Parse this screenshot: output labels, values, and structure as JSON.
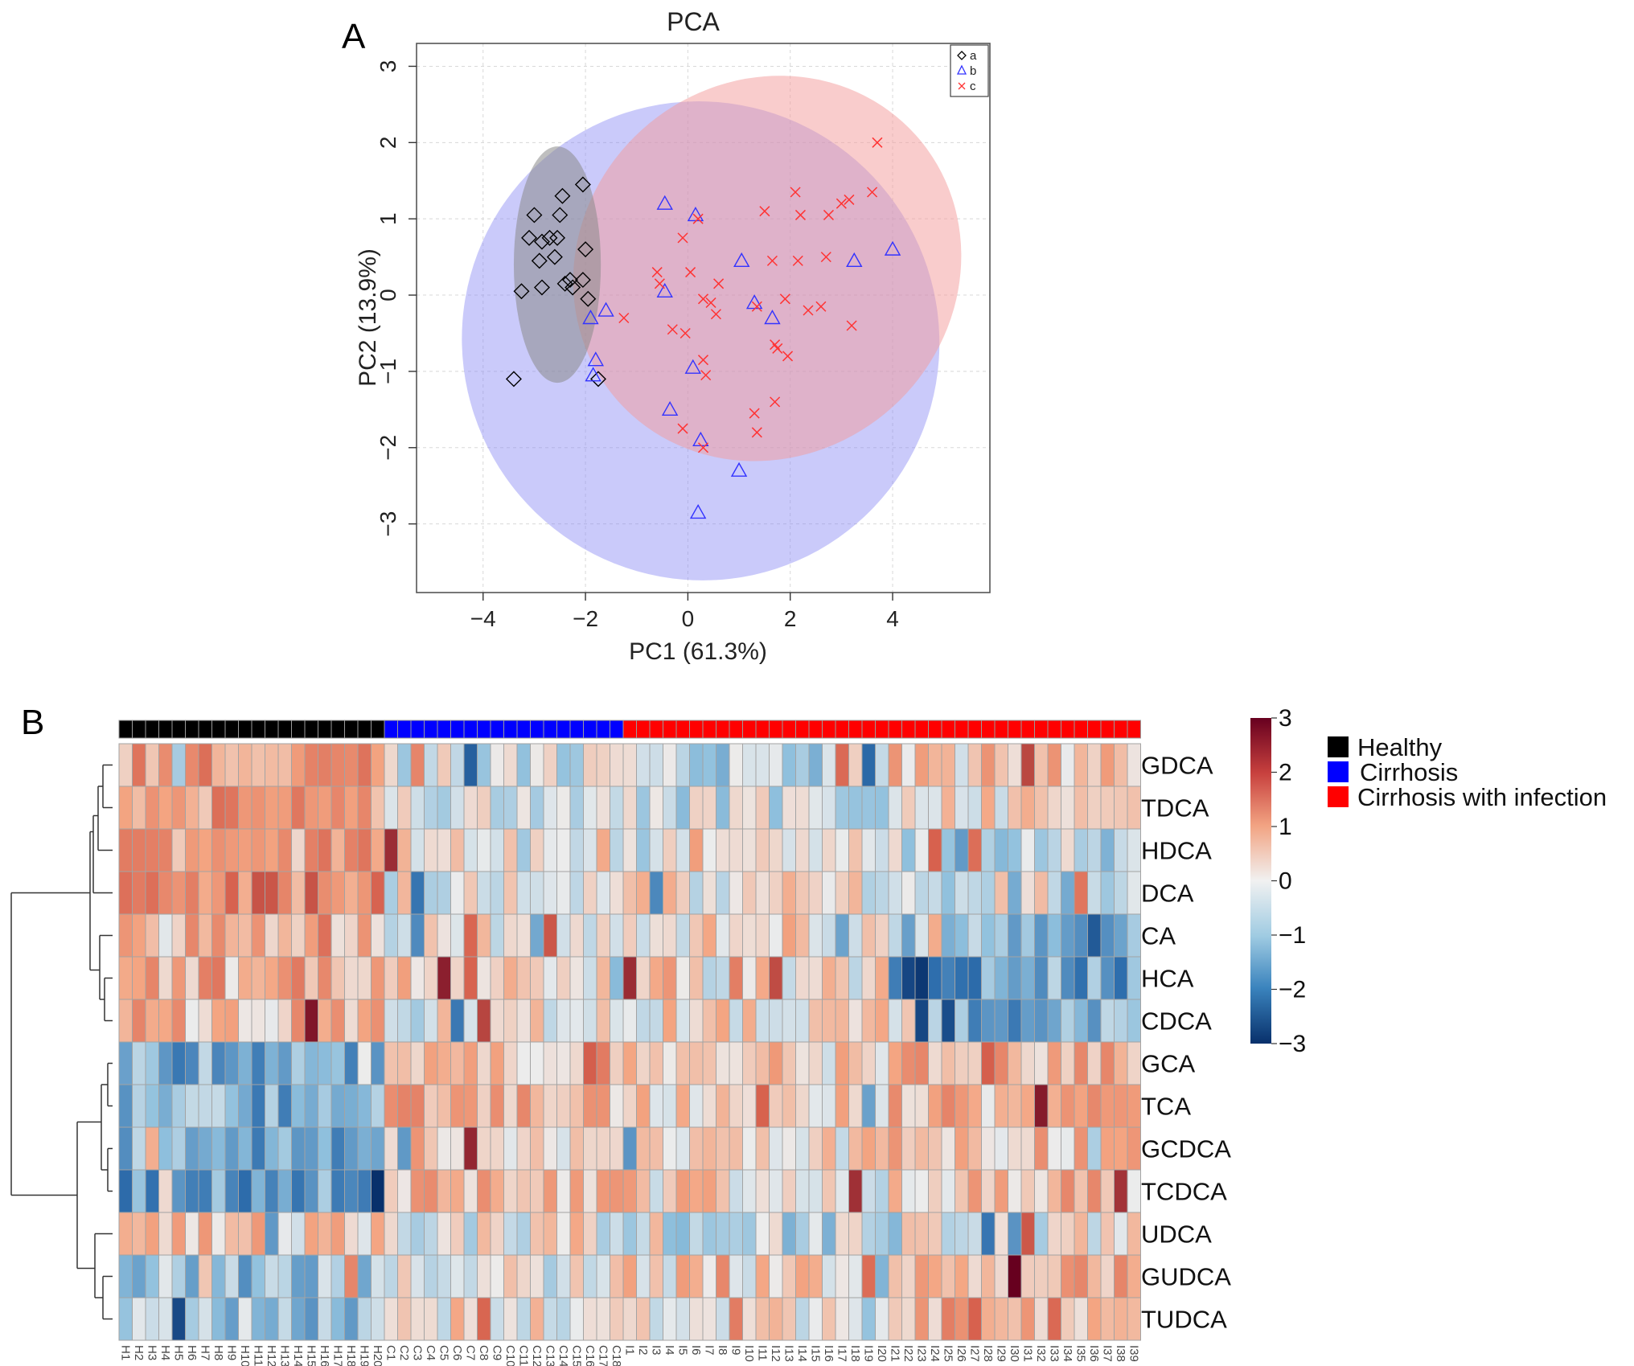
{
  "panel_labels": {
    "a": "A",
    "b": "B"
  },
  "colors": {
    "group_a": "#000000",
    "group_b": "#3333ff",
    "group_c": "#ff3333",
    "healthy": "#000000",
    "cirrhosis": "#0000ff",
    "infection": "#ff0000",
    "scale_low": "#08306b",
    "scale_mid": "#f7f7f7",
    "scale_high": "#67001f"
  },
  "chart_data": [
    {
      "type": "scatter",
      "title": "PCA",
      "xlabel": "PC1 (61.3%)",
      "ylabel": "PC2 (13.9%)",
      "xlim": [
        -5.3,
        5.9
      ],
      "ylim": [
        -3.9,
        3.3
      ],
      "xticks": [
        -4,
        -2,
        0,
        2,
        4
      ],
      "xtick_labels": [
        "−4",
        "−2",
        "0",
        "2",
        "4"
      ],
      "yticks": [
        -3,
        -2,
        -1,
        0,
        1,
        2,
        3
      ],
      "ytick_labels": [
        "−3",
        "−2",
        "−1",
        "0",
        "1",
        "2",
        "3"
      ],
      "grid": true,
      "legend": {
        "position": "top-right",
        "entries": [
          "a",
          "b",
          "c"
        ]
      },
      "ellipses": [
        {
          "group": "b",
          "cx": 0.25,
          "cy": -0.6,
          "rx": 4.65,
          "ry": 3.15,
          "angle": 35,
          "color": "#8a8af5",
          "opacity": 0.45
        },
        {
          "group": "c",
          "cx": 1.55,
          "cy": 0.35,
          "rx": 3.9,
          "ry": 2.45,
          "angle": 42,
          "color": "#f39a9a",
          "opacity": 0.5
        },
        {
          "group": "a",
          "cx": -2.55,
          "cy": 0.4,
          "rx": 0.85,
          "ry": 1.55,
          "angle": 0,
          "color": "#8a8a8a",
          "opacity": 0.55
        }
      ],
      "series": [
        {
          "name": "a",
          "marker": "diamond",
          "points": [
            [
              -3.0,
              1.05
            ],
            [
              -3.1,
              0.75
            ],
            [
              -2.85,
              0.7
            ],
            [
              -2.7,
              0.75
            ],
            [
              -2.55,
              0.75
            ],
            [
              -2.5,
              1.05
            ],
            [
              -2.45,
              1.3
            ],
            [
              -2.05,
              1.45
            ],
            [
              -2.0,
              0.6
            ],
            [
              -2.9,
              0.45
            ],
            [
              -2.6,
              0.5
            ],
            [
              -2.3,
              0.2
            ],
            [
              -2.25,
              0.1
            ],
            [
              -2.05,
              0.2
            ],
            [
              -3.25,
              0.05
            ],
            [
              -2.85,
              0.1
            ],
            [
              -1.95,
              -0.05
            ],
            [
              -3.4,
              -1.1
            ],
            [
              -1.75,
              -1.1
            ],
            [
              -2.4,
              0.15
            ]
          ]
        },
        {
          "name": "b",
          "marker": "triangle",
          "points": [
            [
              -0.45,
              1.2
            ],
            [
              0.15,
              1.05
            ],
            [
              -0.45,
              0.05
            ],
            [
              1.05,
              0.45
            ],
            [
              -1.9,
              -0.3
            ],
            [
              -1.6,
              -0.2
            ],
            [
              -1.8,
              -0.85
            ],
            [
              -1.85,
              -1.05
            ],
            [
              1.3,
              -0.1
            ],
            [
              1.65,
              -0.3
            ],
            [
              3.25,
              0.45
            ],
            [
              4.0,
              0.6
            ],
            [
              0.1,
              -0.95
            ],
            [
              -0.35,
              -1.5
            ],
            [
              0.25,
              -1.9
            ],
            [
              1.0,
              -2.3
            ],
            [
              0.2,
              -2.85
            ]
          ]
        },
        {
          "name": "c",
          "marker": "x",
          "points": [
            [
              3.7,
              2.0
            ],
            [
              3.6,
              1.35
            ],
            [
              3.15,
              1.25
            ],
            [
              3.0,
              1.2
            ],
            [
              2.1,
              1.35
            ],
            [
              1.5,
              1.1
            ],
            [
              2.2,
              1.05
            ],
            [
              2.75,
              1.05
            ],
            [
              0.2,
              1.0
            ],
            [
              -0.1,
              0.75
            ],
            [
              0.05,
              0.3
            ],
            [
              -0.6,
              0.3
            ],
            [
              -0.55,
              0.15
            ],
            [
              0.6,
              0.15
            ],
            [
              1.65,
              0.45
            ],
            [
              2.15,
              0.45
            ],
            [
              2.7,
              0.5
            ],
            [
              3.2,
              -0.4
            ],
            [
              2.6,
              -0.15
            ],
            [
              2.35,
              -0.2
            ],
            [
              1.9,
              -0.05
            ],
            [
              1.35,
              -0.15
            ],
            [
              0.45,
              -0.1
            ],
            [
              0.55,
              -0.25
            ],
            [
              0.3,
              -0.05
            ],
            [
              -0.3,
              -0.45
            ],
            [
              -1.25,
              -0.3
            ],
            [
              1.7,
              -0.65
            ],
            [
              1.75,
              -0.7
            ],
            [
              1.95,
              -0.8
            ],
            [
              0.3,
              -0.85
            ],
            [
              0.35,
              -1.05
            ],
            [
              1.7,
              -1.4
            ],
            [
              1.3,
              -1.55
            ],
            [
              1.35,
              -1.8
            ],
            [
              -0.1,
              -1.75
            ],
            [
              0.3,
              -2.0
            ],
            [
              -0.05,
              -0.5
            ]
          ]
        }
      ]
    },
    {
      "type": "heatmap",
      "columns": [
        "H1",
        "H2",
        "H3",
        "H4",
        "H5",
        "H6",
        "H7",
        "H8",
        "H9",
        "H10",
        "H11",
        "H12",
        "H13",
        "H14",
        "H15",
        "H16",
        "H17",
        "H18",
        "H19",
        "H20",
        "C1",
        "C2",
        "C3",
        "C4",
        "C5",
        "C6",
        "C7",
        "C8",
        "C9",
        "C10",
        "C11",
        "C12",
        "C13",
        "C14",
        "C15",
        "C16",
        "C17",
        "C18",
        "I1",
        "I2",
        "I3",
        "I4",
        "I5",
        "I6",
        "I7",
        "I8",
        "I9",
        "I10",
        "I11",
        "I12",
        "I13",
        "I14",
        "I15",
        "I16",
        "I17",
        "I18",
        "I19",
        "I20",
        "I21",
        "I22",
        "I23",
        "I24",
        "I25",
        "I26",
        "I27",
        "I28",
        "I29",
        "I30",
        "I31",
        "I32",
        "I33",
        "I34",
        "I35",
        "I36",
        "I37",
        "I38",
        "I39"
      ],
      "column_groups": {
        "Healthy": 20,
        "Cirrhosis": 18,
        "Cirrhosis with infection": 39
      },
      "rows": [
        "GDCA",
        "TDCA",
        "HDCA",
        "DCA",
        "CA",
        "HCA",
        "CDCA",
        "GCA",
        "TCA",
        "GCDCA",
        "TCDCA",
        "UDCA",
        "GUDCA",
        "TUDCA"
      ],
      "row_profiles": {
        "GDCA": [
          1.2,
          -0.2,
          -0.5,
          0.5
        ],
        "TDCA": [
          1.3,
          0.0,
          -0.3,
          0.4
        ],
        "HDCA": [
          1.1,
          0.2,
          -0.1,
          -0.4
        ],
        "DCA": [
          1.4,
          0.0,
          0.1,
          -0.6
        ],
        "CA": [
          0.6,
          0.1,
          0.3,
          -0.9
        ],
        "HCA": [
          0.9,
          0.4,
          0.2,
          -1.3
        ],
        "CDCA": [
          0.7,
          0.3,
          0.3,
          -1.1
        ],
        "GCA": [
          -1.2,
          0.7,
          0.4,
          0.8
        ],
        "TCA": [
          -1.1,
          0.8,
          0.4,
          0.7
        ],
        "GCDCA": [
          -1.2,
          0.5,
          0.3,
          0.6
        ],
        "TCDCA": [
          -1.3,
          0.6,
          0.4,
          0.7
        ],
        "UDCA": [
          0.5,
          0.0,
          -0.4,
          0.0
        ],
        "GUDCA": [
          -0.9,
          -0.1,
          0.4,
          0.9
        ],
        "TUDCA": [
          -0.8,
          0.2,
          0.2,
          0.9
        ]
      },
      "scale": {
        "min": -3,
        "max": 3,
        "ticks": [
          3,
          2,
          1,
          0,
          -1,
          -2,
          -3
        ],
        "tick_labels": [
          "3",
          "2",
          "1",
          "0",
          "−1",
          "−2",
          "−3"
        ]
      },
      "legend": {
        "position": "right",
        "entries": [
          "Healthy",
          "Cirrhosis",
          "Cirrhosis with infection"
        ]
      },
      "dendrogram": "rows"
    }
  ]
}
